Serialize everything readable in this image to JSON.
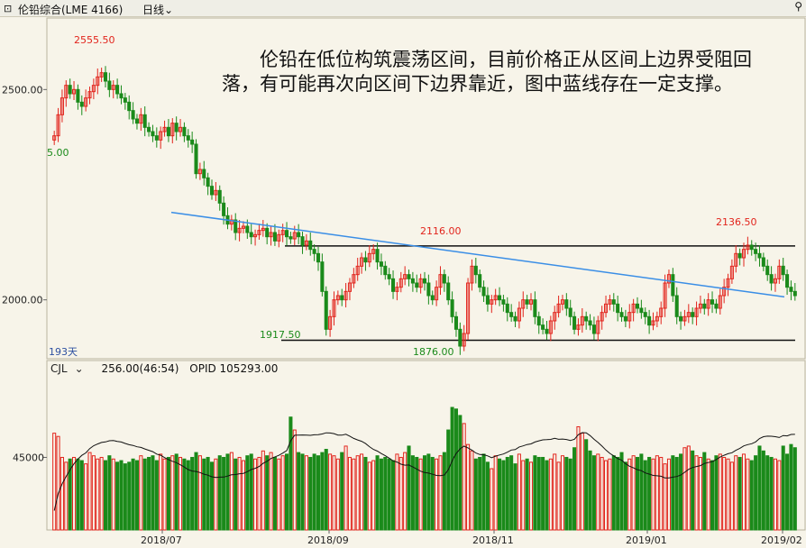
{
  "toolbar": {
    "icon": "link-icon",
    "title": "伦铅综合(LME 4166)",
    "period": "日线",
    "search_icon": "search-icon"
  },
  "annotation": "伦铅在低位构筑震荡区间，目前价格正从区间上边界受阻回落，有可能再次向区间下边界靠近，图中蓝线存在一定支撑。",
  "colors": {
    "up": "#e2241c",
    "down": "#1a8a1a",
    "trendline": "#3a8ee6",
    "background": "#f7f4e9"
  },
  "chart_data": [
    {
      "type": "candlestick",
      "y_ticks": [
        "2500.00",
        "2000.00"
      ],
      "y_tick_values": [
        2500,
        2000
      ],
      "ylim": [
        1860,
        2670
      ],
      "x_tick_labels": [
        "2018/07",
        "2018/09",
        "2018/11",
        "2019/01",
        "2019/02"
      ],
      "bar_count_label": "193天",
      "partial_left_label": "5.00",
      "annotations": [
        {
          "label": "2555.50",
          "value": 2555.5,
          "color": "#e2241c"
        },
        {
          "label": "2116.00",
          "value": 2116.0,
          "color": "#e2241c"
        },
        {
          "label": "2136.50",
          "value": 2136.5,
          "color": "#e2241c"
        },
        {
          "label": "1917.50",
          "value": 1917.5,
          "color": "#1a8a1a"
        },
        {
          "label": "1876.00",
          "value": 1876.0,
          "color": "#1a8a1a"
        }
      ],
      "horizontal_lines": [
        2128,
        1904
      ],
      "trendline": {
        "start": 2208,
        "end": 2007,
        "color": "#3a8ee6"
      },
      "close": [
        2390,
        2440,
        2480,
        2510,
        2490,
        2500,
        2470,
        2460,
        2480,
        2495,
        2510,
        2530,
        2540,
        2520,
        2500,
        2510,
        2490,
        2480,
        2470,
        2450,
        2430,
        2420,
        2440,
        2410,
        2400,
        2390,
        2380,
        2400,
        2410,
        2390,
        2420,
        2400,
        2410,
        2390,
        2380,
        2370,
        2300,
        2310,
        2290,
        2270,
        2250,
        2260,
        2230,
        2200,
        2180,
        2190,
        2160,
        2170,
        2175,
        2160,
        2150,
        2155,
        2165,
        2170,
        2150,
        2160,
        2140,
        2155,
        2165,
        2150,
        2145,
        2160,
        2150,
        2130,
        2140,
        2120,
        2110,
        2090,
        2020,
        1930,
        1960,
        2000,
        2010,
        2000,
        2020,
        2040,
        2060,
        2080,
        2100,
        2090,
        2110,
        2120,
        2090,
        2080,
        2060,
        2050,
        2020,
        2030,
        2050,
        2060,
        2050,
        2040,
        2030,
        2050,
        2040,
        2010,
        2000,
        2030,
        2060,
        2040,
        2000,
        1960,
        1930,
        1890,
        1920,
        2040,
        2080,
        2060,
        2030,
        2010,
        1990,
        2000,
        2010,
        2000,
        1990,
        1970,
        1960,
        1950,
        1980,
        2000,
        1990,
        2000,
        1960,
        1940,
        1930,
        1920,
        1950,
        1970,
        1990,
        2000,
        1980,
        1960,
        1930,
        1940,
        1960,
        1950,
        1940,
        1920,
        1950,
        1970,
        1990,
        2000,
        1990,
        1970,
        1960,
        1950,
        1970,
        1990,
        1980,
        1970,
        1960,
        1940,
        1950,
        1960,
        1980,
        2040,
        2060,
        2010,
        1960,
        1950,
        1960,
        1970,
        1960,
        1980,
        1990,
        1980,
        2000,
        1990,
        1980,
        2010,
        2030,
        2050,
        2080,
        2110,
        2100,
        2120,
        2130,
        2120,
        2110,
        2100,
        2080,
        2060,
        2040,
        2050,
        2080,
        2060,
        2030,
        2020,
        2010
      ],
      "volume_y_tick": "45000",
      "volume_y_tick_value": 45000,
      "volume_ylim": [
        0,
        95000
      ],
      "volume_series_label": "CJL",
      "volume_value_label": "256.00(46:54)",
      "opid_label": "OPID 105293.00",
      "volume": [
        60000,
        58000,
        45000,
        42000,
        44000,
        45000,
        44000,
        43000,
        41000,
        48000,
        46000,
        44000,
        45000,
        43000,
        46000,
        44000,
        42000,
        43000,
        41000,
        42000,
        44000,
        43000,
        46000,
        44000,
        45000,
        46000,
        43000,
        47000,
        44000,
        45000,
        46000,
        47000,
        45000,
        44000,
        43000,
        45000,
        48000,
        46000,
        44000,
        45000,
        42000,
        44000,
        46000,
        45000,
        47000,
        48000,
        44000,
        45000,
        43000,
        46000,
        47000,
        44000,
        45000,
        49000,
        46000,
        48000,
        45000,
        44000,
        46000,
        47000,
        70000,
        62000,
        48000,
        47000,
        46000,
        45000,
        47000,
        46000,
        48000,
        50000,
        47000,
        46000,
        44000,
        48000,
        52000,
        45000,
        44000,
        46000,
        47000,
        45000,
        42000,
        43000,
        46000,
        44000,
        45000,
        44000,
        43000,
        47000,
        45000,
        48000,
        52000,
        46000,
        45000,
        44000,
        46000,
        47000,
        45000,
        44000,
        46000,
        48000,
        62000,
        76000,
        75000,
        71000,
        66000,
        53000,
        49000,
        44000,
        45000,
        47000,
        42000,
        38000,
        46000,
        44000,
        43000,
        45000,
        46000,
        41000,
        47000,
        43000,
        44000,
        42000,
        46000,
        45000,
        45000,
        43000,
        44000,
        47000,
        42000,
        46000,
        45000,
        44000,
        51000,
        64000,
        60000,
        56000,
        49000,
        46000,
        47000,
        45000,
        43000,
        44000,
        46000,
        45000,
        48000,
        42000,
        44000,
        46000,
        45000,
        47000,
        43000,
        45000,
        44000,
        46000,
        45000,
        41000,
        44000,
        46000,
        45000,
        47000,
        51000,
        52000,
        49000,
        46000,
        45000,
        48000,
        44000,
        43000,
        46000,
        47000,
        45000,
        44000,
        42000,
        46000,
        45000,
        47000,
        44000,
        43000,
        46000,
        52000,
        49000,
        46000,
        45000,
        44000,
        43000,
        52000,
        47000,
        53000,
        51000
      ]
    }
  ]
}
